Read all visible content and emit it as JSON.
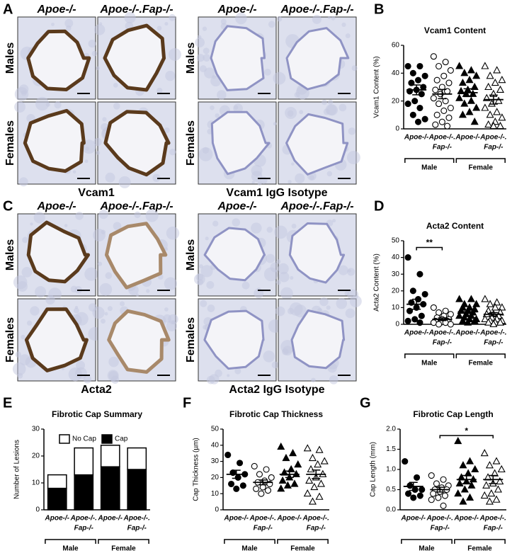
{
  "figure_a": {
    "panel": "A",
    "columns": [
      "Apoe-/-",
      "Apoe-/-.Fap-/-"
    ],
    "rows": [
      "Males",
      "Females"
    ],
    "captions": [
      "Vcam1",
      "Vcam1 IgG Isotype"
    ]
  },
  "figure_c": {
    "panel": "C",
    "columns": [
      "Apoe-/-",
      "Apoe-/-.Fap-/-"
    ],
    "rows": [
      "Males",
      "Females"
    ],
    "captions": [
      "Acta2",
      "Acta2 IgG Isotype"
    ]
  },
  "chart_data": [
    {
      "type": "dotplot",
      "panel": "B",
      "title": "Vcam1 Content",
      "y_label": "Vcam1 Content (%)",
      "categories": [
        [
          "Apoe-/-"
        ],
        [
          "Apoe-/-.",
          "Fap-/-"
        ],
        [
          "Apoe-/-"
        ],
        [
          "Apoe-/-.",
          "Fap-/-"
        ]
      ],
      "sexes": [
        "Male",
        "Female"
      ],
      "ylim": [
        0,
        60
      ],
      "yticks": [
        0,
        20,
        40,
        60
      ],
      "groups": [
        {
          "marker": "circle",
          "filled": true,
          "values": [
            45,
            45,
            40,
            38,
            35,
            33,
            30,
            28,
            27,
            25,
            20,
            18,
            15,
            10,
            7,
            5
          ],
          "mean": 28,
          "sem": 3.5
        },
        {
          "marker": "circle",
          "filled": false,
          "values": [
            52,
            48,
            45,
            42,
            38,
            35,
            33,
            30,
            28,
            27,
            25,
            22,
            20,
            18,
            15,
            13,
            10,
            8,
            5,
            3,
            2
          ],
          "mean": 25,
          "sem": 3.3
        },
        {
          "marker": "triangle",
          "filled": true,
          "values": [
            45,
            42,
            40,
            38,
            35,
            33,
            30,
            28,
            27,
            25,
            25,
            22,
            20,
            18,
            15,
            12,
            10,
            5
          ],
          "mean": 26,
          "sem": 2.8
        },
        {
          "marker": "triangle",
          "filled": false,
          "values": [
            45,
            42,
            38,
            35,
            33,
            30,
            28,
            25,
            22,
            20,
            18,
            15,
            12,
            10,
            8,
            5,
            3,
            2,
            2
          ],
          "mean": 21,
          "sem": 3.2
        }
      ]
    },
    {
      "type": "dotplot",
      "panel": "D",
      "title": "Acta2 Content",
      "y_label": "Acta2 Content (%)",
      "categories": [
        [
          "Apoe-/-"
        ],
        [
          "Apoe-/-.",
          "Fap-/-"
        ],
        [
          "Apoe-/-"
        ],
        [
          "Apoe-/-.",
          "Fap-/-"
        ]
      ],
      "sexes": [
        "Male",
        "Female"
      ],
      "ylim": [
        0,
        50
      ],
      "yticks": [
        0,
        10,
        20,
        30,
        40,
        50
      ],
      "significance": {
        "label": "**",
        "between": [
          0,
          1
        ]
      },
      "groups": [
        {
          "marker": "circle",
          "filled": true,
          "values": [
            40,
            30,
            20,
            18,
            15,
            13,
            12,
            10,
            8,
            5,
            3,
            2,
            1
          ],
          "mean": 12,
          "sem": 3
        },
        {
          "marker": "circle",
          "filled": false,
          "values": [
            10,
            8,
            7,
            6,
            5,
            4,
            3,
            3,
            2,
            2,
            1,
            1,
            1,
            0,
            0
          ],
          "mean": 3,
          "sem": 0.8
        },
        {
          "marker": "triangle",
          "filled": true,
          "values": [
            15,
            15,
            12,
            12,
            10,
            10,
            9,
            8,
            8,
            7,
            6,
            5,
            5,
            4,
            3,
            3,
            2,
            2,
            1
          ],
          "mean": 7.5,
          "sem": 1
        },
        {
          "marker": "triangle",
          "filled": false,
          "values": [
            15,
            13,
            12,
            10,
            10,
            8,
            7,
            6,
            6,
            5,
            4,
            3,
            3,
            2,
            2,
            1,
            1,
            1,
            0
          ],
          "mean": 6,
          "sem": 1
        }
      ]
    },
    {
      "type": "bar",
      "panel": "E",
      "title": "Fibrotic Cap Summary",
      "y_label": "Number of Lesions",
      "categories": [
        [
          "Apoe-/-"
        ],
        [
          "Apoe-/-.",
          "Fap-/-"
        ],
        [
          "Apoe-/-"
        ],
        [
          "Apoe-/-.",
          "Fap-/-"
        ]
      ],
      "sexes": [
        "Male",
        "Female"
      ],
      "ylim": [
        0,
        30
      ],
      "yticks": [
        0,
        10,
        20,
        30
      ],
      "series": [
        {
          "name": "No Cap",
          "color": "#ffffff",
          "values": [
            5,
            10,
            8,
            8
          ]
        },
        {
          "name": "Cap",
          "color": "#000000",
          "values": [
            8,
            13,
            16,
            15
          ]
        }
      ]
    },
    {
      "type": "dotplot",
      "panel": "F",
      "title": "Fibrotic Cap Thickness",
      "y_label": "Cap Thickness (µm)",
      "categories": [
        [
          "Apoe-/-"
        ],
        [
          "Apoe-/-.",
          "Fap-/-"
        ],
        [
          "Apoe-/-"
        ],
        [
          "Apoe-/-.",
          "Fap-/-"
        ]
      ],
      "sexes": [
        "Male",
        "Female"
      ],
      "ylim": [
        0,
        50
      ],
      "yticks": [
        0,
        10,
        20,
        30,
        40,
        50
      ],
      "groups": [
        {
          "marker": "circle",
          "filled": true,
          "values": [
            34,
            29,
            23,
            22,
            20,
            16,
            15,
            13
          ],
          "mean": 22,
          "sem": 2.5
        },
        {
          "marker": "circle",
          "filled": false,
          "values": [
            27,
            25,
            22,
            20,
            18,
            17,
            16,
            14,
            13,
            12,
            10
          ],
          "mean": 17,
          "sem": 1.5
        },
        {
          "marker": "triangle",
          "filled": true,
          "values": [
            39,
            35,
            32,
            28,
            25,
            23,
            22,
            20,
            18,
            16,
            15,
            13
          ],
          "mean": 22,
          "sem": 2
        },
        {
          "marker": "triangle",
          "filled": false,
          "values": [
            38,
            37,
            32,
            30,
            28,
            25,
            22,
            20,
            18,
            16,
            14,
            10,
            8,
            5
          ],
          "mean": 22,
          "sem": 2.6
        }
      ]
    },
    {
      "type": "dotplot",
      "panel": "G",
      "title": "Fibrotic Cap Length",
      "y_label": "Cap Length (mm)",
      "categories": [
        [
          "Apoe-/-"
        ],
        [
          "Apoe-/-.",
          "Fap-/-"
        ],
        [
          "Apoe-/-"
        ],
        [
          "Apoe-/-.",
          "Fap-/-"
        ]
      ],
      "sexes": [
        "Male",
        "Female"
      ],
      "ylim": [
        0,
        2
      ],
      "yticks": [
        {
          "value": 0,
          "label": "0.0"
        },
        {
          "value": 0.5,
          "label": "0.5"
        },
        {
          "value": 1,
          "label": "1.0"
        },
        {
          "value": 1.5,
          "label": "1.5"
        },
        {
          "value": 2,
          "label": "2.0"
        }
      ],
      "significance": {
        "label": "*",
        "between": [
          1,
          3
        ]
      },
      "groups": [
        {
          "marker": "circle",
          "filled": true,
          "values": [
            1.2,
            0.8,
            0.6,
            0.5,
            0.5,
            0.4,
            0.35,
            0.3
          ],
          "mean": 0.58,
          "sem": 0.1
        },
        {
          "marker": "circle",
          "filled": false,
          "values": [
            0.85,
            0.75,
            0.65,
            0.6,
            0.55,
            0.5,
            0.5,
            0.45,
            0.4,
            0.35,
            0.3,
            0.25,
            0.1
          ],
          "mean": 0.5,
          "sem": 0.06
        },
        {
          "marker": "triangle",
          "filled": true,
          "values": [
            1.7,
            1.2,
            1.1,
            1,
            0.9,
            0.8,
            0.75,
            0.7,
            0.65,
            0.6,
            0.5,
            0.4,
            0.3,
            0.2
          ],
          "mean": 0.75,
          "sem": 0.1
        },
        {
          "marker": "triangle",
          "filled": false,
          "values": [
            1.4,
            1.2,
            1.1,
            1,
            0.9,
            0.8,
            0.7,
            0.65,
            0.6,
            0.5,
            0.4,
            0.35,
            0.25,
            0.2
          ],
          "mean": 0.75,
          "sem": 0.1
        }
      ]
    }
  ]
}
